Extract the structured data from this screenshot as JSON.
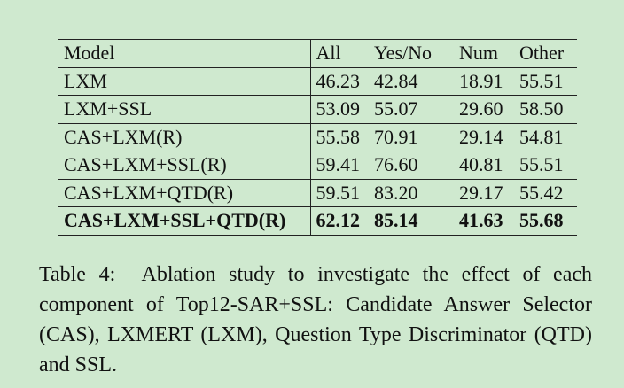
{
  "table": {
    "header": [
      "Model",
      "All",
      "Yes/No",
      "Num",
      "Other"
    ],
    "rows": [
      [
        "LXM",
        "46.23",
        "42.84",
        "18.91",
        "55.51"
      ],
      [
        "LXM+SSL",
        "53.09",
        "55.07",
        "29.60",
        "58.50"
      ],
      [
        "CAS+LXM(R)",
        "55.58",
        "70.91",
        "29.14",
        "54.81"
      ],
      [
        "CAS+LXM+SSL(R)",
        "59.41",
        "76.60",
        "40.81",
        "55.51"
      ],
      [
        "CAS+LXM+QTD(R)",
        "59.51",
        "83.20",
        "29.17",
        "55.42"
      ],
      [
        "CAS+LXM+SSL+QTD(R)",
        "62.12",
        "85.14",
        "41.63",
        "55.68"
      ]
    ]
  },
  "caption": {
    "label": "Table 4:",
    "text": "Ablation study to investigate the effect of each component of Top12-SAR+SSL: Candidate Answer Selector (CAS), LXMERT (LXM), Question Type Discriminator (QTD) and SSL."
  }
}
